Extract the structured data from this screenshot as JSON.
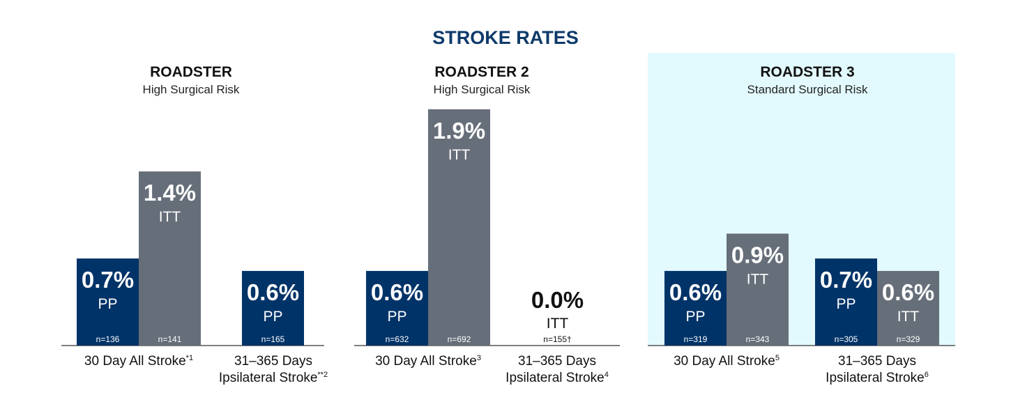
{
  "title": "STROKE RATES",
  "colors": {
    "title": "#0e3a6a",
    "pp": "#003368",
    "itt": "#666e79",
    "panel_highlight": "#e2fafe",
    "baseline": "#333333",
    "zero_label": "#111111"
  },
  "chart_data": [
    {
      "type": "bar",
      "title": "ROADSTER",
      "subtitle": "High Surgical Risk",
      "highlighted": false,
      "groups": [
        {
          "label_lines": [
            "30 Day All Stroke",
            ""
          ],
          "label_sup": "*1",
          "bars": [
            {
              "name": "PP",
              "value": 0.7,
              "display": "0.7%",
              "n": "n=136"
            },
            {
              "name": "ITT",
              "value": 1.4,
              "display": "1.4%",
              "n": "n=141"
            }
          ]
        },
        {
          "label_lines": [
            "31–365 Days",
            "Ipsilateral Stroke"
          ],
          "label_sup": "**2",
          "bars": [
            {
              "name": "PP",
              "value": 0.6,
              "display": "0.6%",
              "n": "n=165"
            }
          ]
        }
      ]
    },
    {
      "type": "bar",
      "title": "ROADSTER 2",
      "subtitle": "High Surgical Risk",
      "highlighted": false,
      "groups": [
        {
          "label_lines": [
            "30 Day All Stroke",
            ""
          ],
          "label_sup": "3",
          "bars": [
            {
              "name": "PP",
              "value": 0.6,
              "display": "0.6%",
              "n": "n=632"
            },
            {
              "name": "ITT",
              "value": 1.9,
              "display": "1.9%",
              "n": "n=692"
            }
          ]
        },
        {
          "label_lines": [
            "31–365 Days",
            "Ipsilateral Stroke"
          ],
          "label_sup": "4",
          "bars": [
            {
              "name": "ITT",
              "value": 0.0,
              "display": "0.0%",
              "n": "n=155†"
            }
          ]
        }
      ]
    },
    {
      "type": "bar",
      "title": "ROADSTER 3",
      "subtitle": "Standard Surgical Risk",
      "highlighted": true,
      "groups": [
        {
          "label_lines": [
            "30 Day All Stroke",
            ""
          ],
          "label_sup": "5",
          "bars": [
            {
              "name": "PP",
              "value": 0.6,
              "display": "0.6%",
              "n": "n=319"
            },
            {
              "name": "ITT",
              "value": 0.9,
              "display": "0.9%",
              "n": "n=343"
            }
          ]
        },
        {
          "label_lines": [
            "31–365 Days",
            "Ipsilateral Stroke"
          ],
          "label_sup": "6",
          "bars": [
            {
              "name": "PP",
              "value": 0.7,
              "display": "0.7%",
              "n": "n=305"
            },
            {
              "name": "ITT",
              "value": 0.6,
              "display": "0.6%",
              "n": "n=329"
            }
          ]
        }
      ]
    }
  ]
}
